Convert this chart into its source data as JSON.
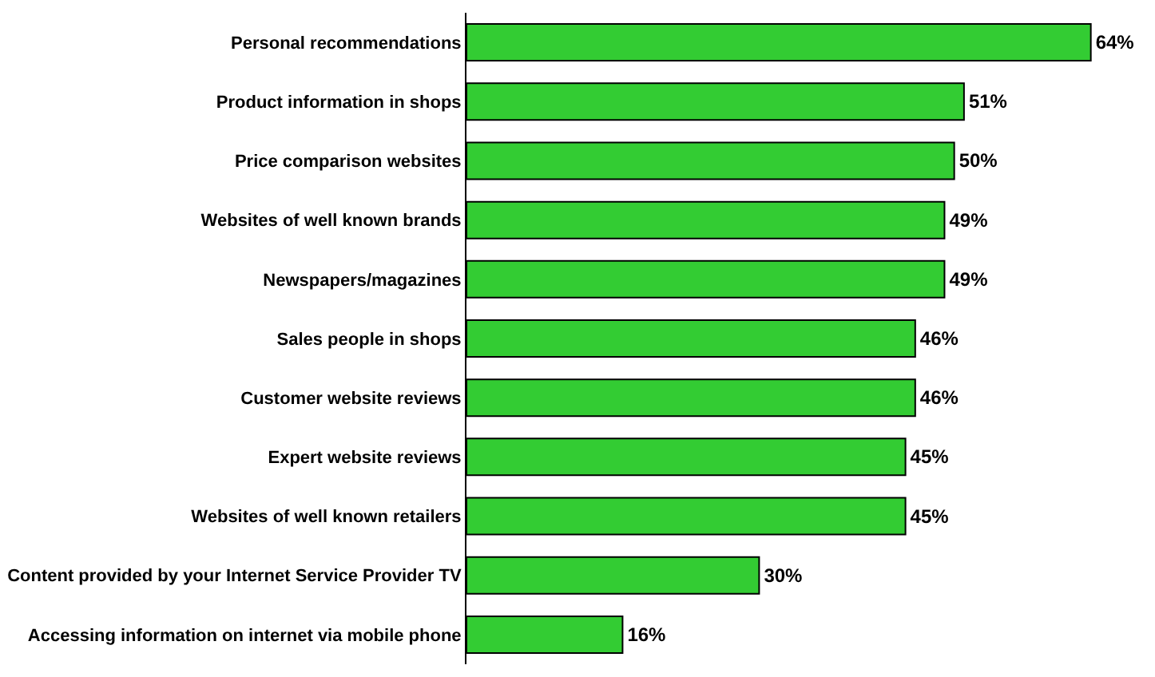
{
  "chart_data": {
    "type": "bar",
    "orientation": "horizontal",
    "categories": [
      "Personal recommendations",
      "Product information in shops",
      "Price comparison websites",
      "Websites of well known brands",
      "Newspapers/magazines",
      "Sales people in shops",
      "Customer website reviews",
      "Expert website reviews",
      "Websites of well known retailers",
      "Content provided by your Internet Service Provider TV",
      "Accessing information on internet via mobile phone"
    ],
    "values": [
      64,
      51,
      50,
      49,
      49,
      46,
      46,
      45,
      45,
      30,
      16
    ],
    "value_labels": [
      "64%",
      "51%",
      "50%",
      "49%",
      "49%",
      "46%",
      "46%",
      "45%",
      "45%",
      "30%",
      "16%"
    ],
    "color": "#33cc33",
    "legend": false
  }
}
